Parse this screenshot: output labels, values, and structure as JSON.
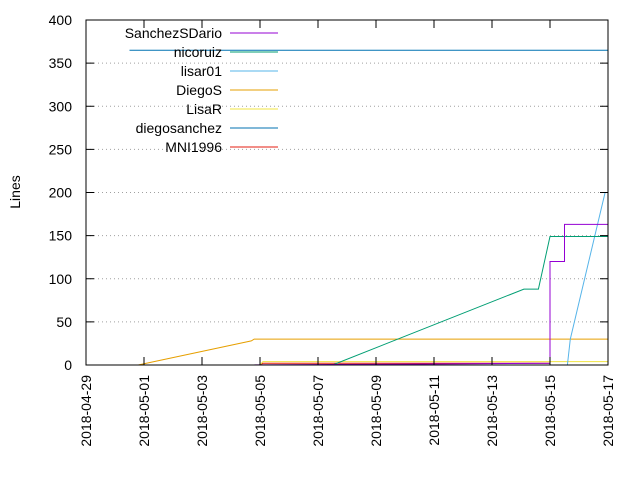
{
  "chart_data": {
    "type": "line",
    "title": "",
    "xlabel": "",
    "ylabel": "Lines",
    "x_type": "date",
    "xlim": [
      "2018-04-29",
      "2018-05-17"
    ],
    "ylim": [
      0,
      400
    ],
    "x_ticks": [
      "2018-04-29",
      "2018-05-01",
      "2018-05-03",
      "2018-05-05",
      "2018-05-07",
      "2018-05-09",
      "2018-05-11",
      "2018-05-13",
      "2018-05-15",
      "2018-05-17"
    ],
    "y_ticks": [
      0,
      50,
      100,
      150,
      200,
      250,
      300,
      350,
      400
    ],
    "grid": "horizontal dotted",
    "legend_position": "top-left",
    "series": [
      {
        "name": "SanchezSDario",
        "color": "#9400d3",
        "points": [
          [
            "2018-05-04",
            0
          ],
          [
            "2018-05-15",
            2
          ],
          [
            "2018-05-15",
            120
          ],
          [
            "2018-05-15.5",
            120
          ],
          [
            "2018-05-15.5",
            163
          ],
          [
            "2018-05-17",
            163
          ],
          [
            "2018-05-17",
            200
          ]
        ]
      },
      {
        "name": "nicoruiz",
        "color": "#009e73",
        "points": [
          [
            "2018-05-07.5",
            0
          ],
          [
            "2018-05-14.1",
            88
          ],
          [
            "2018-05-14.6",
            88
          ],
          [
            "2018-05-15",
            149
          ],
          [
            "2018-05-17",
            149
          ]
        ]
      },
      {
        "name": "lisar01",
        "color": "#56b4e9",
        "points": [
          [
            "2018-05-15.6",
            0
          ],
          [
            "2018-05-15.7",
            30
          ],
          [
            "2018-05-16.9",
            200
          ]
        ]
      },
      {
        "name": "DiegoS",
        "color": "#e69f00",
        "points": [
          [
            "2018-04-30.8",
            0
          ],
          [
            "2018-05-04.7",
            28
          ],
          [
            "2018-05-04.8",
            30
          ],
          [
            "2018-05-17",
            30
          ]
        ]
      },
      {
        "name": "LisaR",
        "color": "#f0e442",
        "points": [
          [
            "2018-05-05",
            0
          ],
          [
            "2018-05-05.1",
            4
          ],
          [
            "2018-05-17",
            4
          ]
        ]
      },
      {
        "name": "diegosanchez",
        "color": "#0072b2",
        "points": [
          [
            "2018-04-30.5",
            365
          ],
          [
            "2018-05-17",
            365
          ]
        ]
      },
      {
        "name": "MNI1996",
        "color": "#e51e10",
        "points": [
          [
            "2018-05-05",
            0
          ],
          [
            "2018-05-05.1",
            2
          ],
          [
            "2018-05-15",
            2
          ]
        ]
      }
    ]
  }
}
